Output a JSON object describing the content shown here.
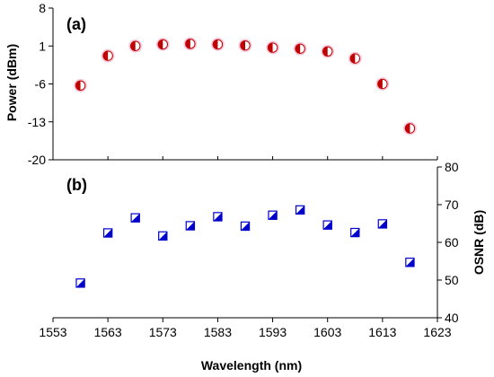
{
  "chart_data": [
    {
      "type": "scatter",
      "panel_label": "(a)",
      "ylabel": "Power (dBm)",
      "y_axis_side": "left",
      "xlim": [
        1553,
        1623
      ],
      "ylim": [
        -20,
        8
      ],
      "y_ticks": [
        8,
        1,
        -6,
        -13,
        -20
      ],
      "grid": false,
      "marker": "half-filled-circle",
      "marker_color": "#c00000",
      "series": [
        {
          "x": [
            1558,
            1563,
            1568,
            1573,
            1578,
            1583,
            1588,
            1593,
            1598,
            1603,
            1608,
            1613,
            1618
          ],
          "values": [
            -6.3,
            -0.8,
            1.0,
            1.3,
            1.4,
            1.3,
            1.1,
            0.7,
            0.5,
            0.0,
            -1.3,
            -6.0,
            -14.2
          ]
        }
      ]
    },
    {
      "type": "scatter",
      "panel_label": "(b)",
      "ylabel": "OSNR (dB)",
      "y_axis_side": "right",
      "xlim": [
        1553,
        1623
      ],
      "ylim": [
        40,
        80
      ],
      "y_ticks": [
        40,
        50,
        60,
        70,
        80
      ],
      "grid": false,
      "marker": "half-filled-square",
      "marker_color": "#0000cc",
      "series": [
        {
          "x": [
            1558,
            1563,
            1568,
            1573,
            1578,
            1583,
            1588,
            1593,
            1598,
            1603,
            1608,
            1613,
            1618
          ],
          "values": [
            49.2,
            62.5,
            66.5,
            61.7,
            64.4,
            66.8,
            64.3,
            67.2,
            68.6,
            64.6,
            62.6,
            64.9,
            54.7
          ]
        }
      ]
    }
  ],
  "x_axis": {
    "xlabel": "Wavelength (nm)",
    "x_ticks": [
      1553,
      1563,
      1573,
      1583,
      1593,
      1603,
      1613,
      1623
    ]
  }
}
